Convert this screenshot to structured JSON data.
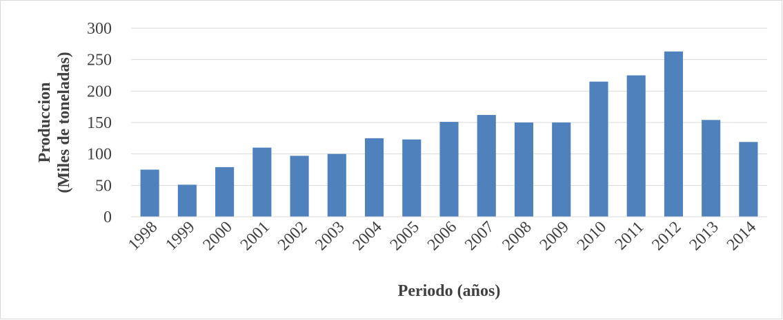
{
  "chart_data": {
    "type": "bar",
    "ylabel": [
      "Produccion",
      "(Miles de toneladas)"
    ],
    "xlabel": "Periodo (años)",
    "categories": [
      "1998",
      "1999",
      "2000",
      "2001",
      "2002",
      "2003",
      "2004",
      "2005",
      "2006",
      "2007",
      "2008",
      "2009",
      "2010",
      "2011",
      "2012",
      "2013",
      "2014"
    ],
    "values": [
      75,
      51,
      79,
      110,
      97,
      100,
      125,
      123,
      151,
      162,
      150,
      150,
      215,
      225,
      263,
      154,
      119
    ],
    "color": "#4f81bd",
    "ylim": [
      0,
      300
    ],
    "yticks": [
      0,
      50,
      100,
      150,
      200,
      250,
      300
    ],
    "grid": true
  }
}
